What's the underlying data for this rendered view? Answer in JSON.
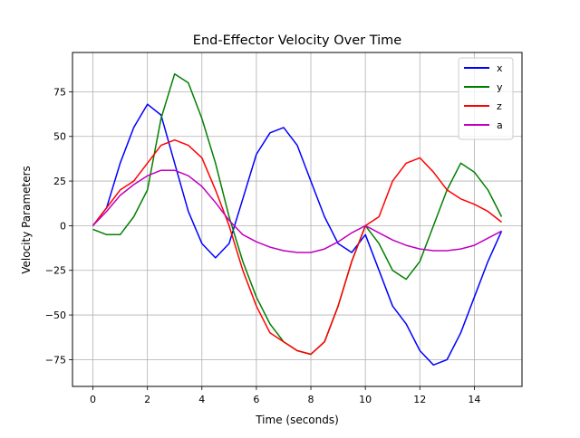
{
  "chart_data": {
    "type": "line",
    "title": "End-Effector Velocity Over Time",
    "xlabel": "Time (seconds)",
    "ylabel": "Velocity Parameters",
    "xlim": [
      -0.75,
      15.75
    ],
    "ylim": [
      -90,
      97
    ],
    "xticks": [
      0,
      2,
      4,
      6,
      8,
      10,
      12,
      14
    ],
    "yticks": [
      -75,
      -50,
      -25,
      0,
      25,
      50,
      75
    ],
    "grid": true,
    "legend": "top-right",
    "series": [
      {
        "name": "x",
        "color": "#0000ff",
        "x": [
          0,
          0.5,
          1,
          1.5,
          2,
          2.5,
          3,
          3.5,
          4,
          4.5,
          5,
          5.5,
          6,
          6.5,
          7,
          7.5,
          8,
          8.5,
          9,
          9.5,
          10,
          10.5,
          11,
          11.5,
          12,
          12.5,
          13,
          13.5,
          14,
          14.5,
          15
        ],
        "y": [
          0,
          10,
          35,
          55,
          68,
          62,
          35,
          8,
          -10,
          -18,
          -10,
          15,
          40,
          52,
          55,
          45,
          25,
          5,
          -10,
          -15,
          -5,
          -25,
          -45,
          -55,
          -70,
          -78,
          -75,
          -60,
          -40,
          -20,
          -3
        ]
      },
      {
        "name": "y",
        "color": "#008000",
        "x": [
          0,
          0.5,
          1,
          1.5,
          2,
          2.5,
          3,
          3.5,
          4,
          4.5,
          5,
          5.5,
          6,
          6.5,
          7,
          7.5,
          8,
          8.5,
          9,
          9.5,
          10,
          10.5,
          11,
          11.5,
          12,
          12.5,
          13,
          13.5,
          14,
          14.5,
          15
        ],
        "y": [
          -2,
          -5,
          -5,
          5,
          20,
          60,
          85,
          80,
          60,
          35,
          5,
          -20,
          -40,
          -55,
          -65,
          -70,
          -72,
          -65,
          -45,
          -20,
          0,
          -10,
          -25,
          -30,
          -20,
          0,
          20,
          35,
          30,
          20,
          5
        ]
      },
      {
        "name": "z",
        "color": "#ff0000",
        "x": [
          0,
          0.5,
          1,
          1.5,
          2,
          2.5,
          3,
          3.5,
          4,
          4.5,
          5,
          5.5,
          6,
          6.5,
          7,
          7.5,
          8,
          8.5,
          9,
          9.5,
          10,
          10.5,
          11,
          11.5,
          12,
          12.5,
          13,
          13.5,
          14,
          14.5,
          15
        ],
        "y": [
          0,
          10,
          20,
          25,
          35,
          45,
          48,
          45,
          38,
          20,
          0,
          -25,
          -45,
          -60,
          -65,
          -70,
          -72,
          -65,
          -45,
          -20,
          0,
          5,
          25,
          35,
          38,
          30,
          20,
          15,
          12,
          8,
          2
        ]
      },
      {
        "name": "a",
        "color": "#bf00bf",
        "x": [
          0,
          0.5,
          1,
          1.5,
          2,
          2.5,
          3,
          3.5,
          4,
          4.5,
          5,
          5.5,
          6,
          6.5,
          7,
          7.5,
          8,
          8.5,
          9,
          9.5,
          10,
          10.5,
          11,
          11.5,
          12,
          12.5,
          13,
          13.5,
          14,
          14.5,
          15
        ],
        "y": [
          0,
          8,
          17,
          23,
          28,
          31,
          31,
          28,
          22,
          13,
          3,
          -5,
          -9,
          -12,
          -14,
          -15,
          -15,
          -13,
          -9,
          -4,
          0,
          -4,
          -8,
          -11,
          -13,
          -14,
          -14,
          -13,
          -11,
          -7,
          -3
        ]
      }
    ]
  }
}
